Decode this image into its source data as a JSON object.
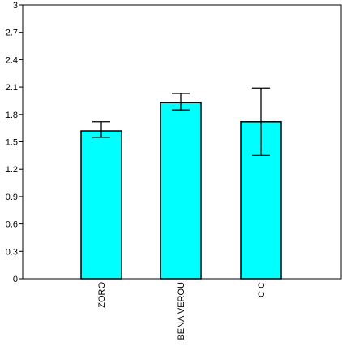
{
  "chart_data": {
    "type": "bar",
    "title": "",
    "xlabel": "",
    "ylabel": "",
    "categories": [
      "ZORO",
      "BENA VEROU",
      "C  C"
    ],
    "values": [
      1.62,
      1.93,
      1.72
    ],
    "error": [
      {
        "low": 1.55,
        "high": 1.72
      },
      {
        "low": 1.85,
        "high": 2.03
      },
      {
        "low": 1.35,
        "high": 2.09
      }
    ],
    "ylim": [
      0,
      3
    ],
    "yticks": [
      {
        "value": 0,
        "label": "0"
      },
      {
        "value": 0.3,
        "label": "0.3"
      },
      {
        "value": 0.6,
        "label": "0.6"
      },
      {
        "value": 0.9,
        "label": "0.9"
      },
      {
        "value": 1.2,
        "label": "1.2"
      },
      {
        "value": 1.5,
        "label": "1.5"
      },
      {
        "value": 1.8,
        "label": "1.8"
      },
      {
        "value": 2.1,
        "label": "2.1"
      },
      {
        "value": 2.4,
        "label": "2.4"
      },
      {
        "value": 2.7,
        "label": "2.7"
      },
      {
        "value": 3,
        "label": "3"
      }
    ],
    "grid": false,
    "legend": "none",
    "colors": {
      "bar_fill": "#00ffff",
      "bar_stroke": "#000000",
      "axis": "#000000"
    }
  }
}
